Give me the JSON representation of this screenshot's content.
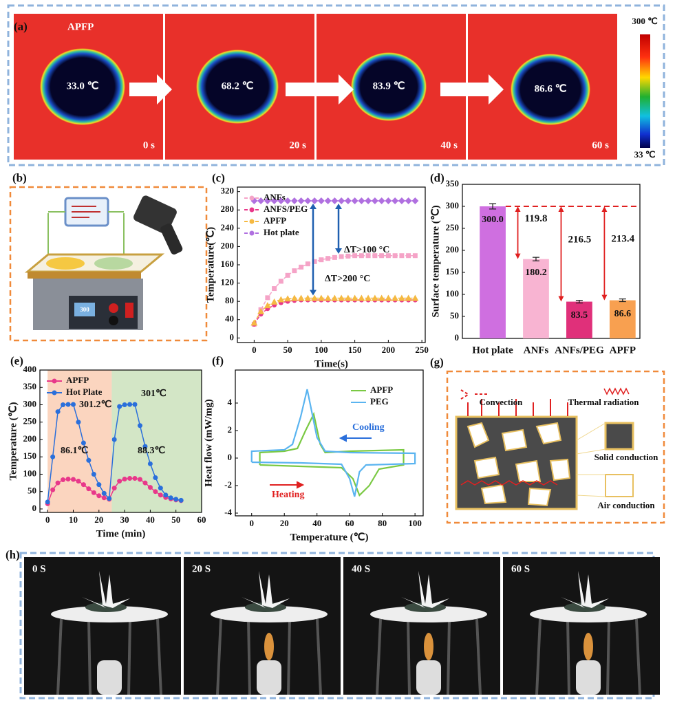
{
  "panels": {
    "a": {
      "label": "(a)",
      "sample": "APFP",
      "temperatures": [
        "33.0 ℃",
        "68.2 ℃",
        "83.9 ℃",
        "86.6 ℃"
      ],
      "times": [
        "0 s",
        "20 s",
        "40 s",
        "60 s"
      ],
      "scale_max": "300 ℃",
      "scale_min": "33 ℃"
    },
    "b": {
      "label": "(b)",
      "display": "300"
    },
    "g": {
      "label": "(g)",
      "convection": "Convection",
      "radiation": "Thermal radiation",
      "solid": "Solid conduction",
      "air": "Air conduction"
    },
    "h": {
      "label": "(h)",
      "times": [
        "0 S",
        "20 S",
        "40 S",
        "60 S"
      ]
    }
  },
  "chart_data": [
    {
      "type": "line",
      "panel_label": "(c)",
      "x_label": "Time(s)",
      "y_label": "Temperature(℃)",
      "x": [
        0,
        10,
        20,
        30,
        40,
        50,
        60,
        70,
        80,
        90,
        100,
        110,
        120,
        130,
        140,
        150,
        160,
        170,
        180,
        190,
        200,
        210,
        220,
        230,
        240
      ],
      "xlim": [
        -25,
        255
      ],
      "xticks": [
        0,
        50,
        100,
        150,
        200,
        250
      ],
      "ylim": [
        -10,
        330
      ],
      "yticks": [
        0,
        40,
        80,
        120,
        160,
        200,
        240,
        280,
        320
      ],
      "legend": "upper left",
      "dashed": true,
      "annotations": [
        "ΔT>100 °C",
        "ΔT>200 °C"
      ],
      "series": [
        {
          "name": "ANFs",
          "color": "#f5a3c7",
          "marker": "square",
          "values": [
            30,
            62,
            88,
            108,
            124,
            137,
            147,
            155,
            162,
            167,
            171,
            174,
            176,
            178,
            179,
            180,
            180,
            180,
            180,
            180,
            180,
            180,
            180,
            180,
            180
          ]
        },
        {
          "name": "ANFS/PEG",
          "color": "#e8388a",
          "marker": "circle",
          "values": [
            30,
            52,
            64,
            72,
            77,
            80,
            82,
            83,
            83,
            83,
            83,
            83,
            83,
            83,
            83,
            83,
            83,
            83,
            83,
            83,
            83,
            83,
            83,
            83,
            83
          ]
        },
        {
          "name": "APFP",
          "color": "#f5b942",
          "marker": "triangle",
          "values": [
            33,
            58,
            71,
            79,
            84,
            86,
            87,
            87,
            87,
            87,
            87,
            87,
            87,
            87,
            87,
            87,
            87,
            87,
            87,
            87,
            87,
            87,
            87,
            87,
            87
          ]
        },
        {
          "name": "Hot plate",
          "color": "#b070e0",
          "marker": "diamond",
          "values": [
            300,
            300,
            300,
            300,
            300,
            300,
            300,
            300,
            300,
            300,
            300,
            300,
            300,
            300,
            300,
            300,
            300,
            300,
            300,
            300,
            300,
            300,
            300,
            300,
            300
          ]
        }
      ]
    },
    {
      "type": "bar",
      "panel_label": "(d)",
      "y_label": "Surface temperature (℃)",
      "categories": [
        "Hot plate",
        "ANFs",
        "ANFs/PEG",
        "APFP"
      ],
      "values": [
        300.0,
        180.2,
        83.5,
        86.6
      ],
      "value_labels": [
        "300.0",
        "180.2",
        "83.5",
        "86.6"
      ],
      "errors": [
        6,
        4,
        3,
        3
      ],
      "differences": [
        119.8,
        216.5,
        213.4
      ],
      "colors": [
        "#cf6fe0",
        "#f8b4d2",
        "#e0307a",
        "#f8a050"
      ],
      "ylim": [
        0,
        350
      ],
      "yticks": [
        0,
        50,
        100,
        150,
        200,
        250,
        300,
        350
      ]
    },
    {
      "type": "line",
      "panel_label": "(e)",
      "x_label": "Time (min)",
      "y_label": "Temperature (℃)",
      "x": [
        0,
        2,
        4,
        6,
        8,
        10,
        12,
        14,
        16,
        18,
        20,
        22,
        24,
        26,
        28,
        30,
        32,
        34,
        36,
        38,
        40,
        42,
        44,
        46,
        48,
        50,
        52
      ],
      "xlim": [
        -3,
        60
      ],
      "xticks": [
        0,
        10,
        20,
        30,
        40,
        50,
        60
      ],
      "ylim": [
        -10,
        400
      ],
      "yticks": [
        0,
        50,
        100,
        150,
        200,
        250,
        300,
        350,
        400
      ],
      "legend": "upper left",
      "bands": [
        {
          "xmin": 0,
          "xmax": 25,
          "color": "#fbd5bf"
        },
        {
          "xmin": 25,
          "xmax": 60,
          "color": "#d3e6c6"
        }
      ],
      "annotations": [
        "301.2℃",
        "301℃",
        "86.1℃",
        "88.3℃"
      ],
      "series": [
        {
          "name": "APFP",
          "color": "#e8388a",
          "marker": "circle",
          "values": [
            15,
            55,
            75,
            84,
            86,
            85,
            80,
            70,
            58,
            47,
            38,
            32,
            28,
            60,
            80,
            86,
            88,
            88,
            85,
            75,
            62,
            50,
            40,
            33,
            29,
            26,
            24
          ]
        },
        {
          "name": "Hot Plate",
          "color": "#2a6fdb",
          "marker": "circle",
          "values": [
            20,
            150,
            280,
            300,
            301,
            301,
            250,
            190,
            140,
            100,
            70,
            45,
            30,
            200,
            295,
            300,
            301,
            301,
            240,
            180,
            130,
            90,
            60,
            40,
            32,
            28,
            25
          ]
        }
      ]
    },
    {
      "type": "line",
      "panel_label": "(f)",
      "x_label": "Temperature (℃)",
      "y_label": "Heat flow (mW/mg)",
      "xlim": [
        -10,
        105
      ],
      "xticks": [
        0,
        20,
        40,
        60,
        80,
        100
      ],
      "ylim": [
        -4.2,
        6.4
      ],
      "yticks": [
        -4,
        -2,
        0,
        2,
        4
      ],
      "legend": "upper right",
      "annotations": [
        "Cooling",
        "Heating"
      ],
      "series": [
        {
          "name": "APFP",
          "color": "#7ac943",
          "x": [
            5,
            30,
            55,
            62,
            66,
            72,
            78,
            93,
            93,
            60,
            45,
            42,
            38,
            33,
            28,
            20,
            5,
            5
          ],
          "values": [
            -0.5,
            -0.6,
            -0.7,
            -1.5,
            -2.7,
            -2.0,
            -0.8,
            -0.5,
            0.6,
            0.5,
            0.4,
            1.0,
            3.2,
            2.0,
            0.7,
            0.5,
            0.4,
            -0.5
          ]
        },
        {
          "name": "PEG",
          "color": "#5ab4f0",
          "x": [
            0,
            30,
            55,
            60,
            63,
            66,
            70,
            100,
            100,
            60,
            45,
            40,
            34,
            30,
            25,
            20,
            0,
            0
          ],
          "values": [
            -0.3,
            -0.35,
            -0.45,
            -1.5,
            -2.8,
            -1.0,
            -0.5,
            -0.4,
            0.35,
            0.4,
            0.5,
            1.5,
            5.0,
            3.0,
            1.0,
            0.6,
            0.5,
            -0.3
          ]
        }
      ]
    }
  ]
}
